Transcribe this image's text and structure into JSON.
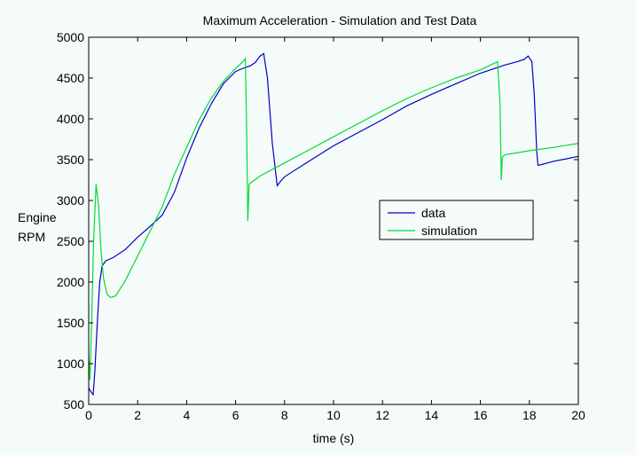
{
  "chart_data": {
    "type": "line",
    "title": "Maximum Acceleration - Simulation and Test Data",
    "xlabel": "time (s)",
    "ylabel": [
      "Engine",
      "RPM"
    ],
    "xlim": [
      0,
      20
    ],
    "ylim": [
      500,
      5000
    ],
    "x_ticks": [
      0,
      2,
      4,
      6,
      8,
      10,
      12,
      14,
      16,
      18,
      20
    ],
    "y_ticks": [
      500,
      1000,
      1500,
      2000,
      2500,
      3000,
      3500,
      4000,
      4500,
      5000
    ],
    "grid": false,
    "legend_position": "right",
    "series": [
      {
        "name": "data",
        "color": "#0000c8",
        "points": [
          [
            0,
            700
          ],
          [
            0.1,
            650
          ],
          [
            0.18,
            620
          ],
          [
            0.25,
            900
          ],
          [
            0.35,
            1500
          ],
          [
            0.45,
            2000
          ],
          [
            0.55,
            2200
          ],
          [
            0.7,
            2260
          ],
          [
            1.0,
            2300
          ],
          [
            1.5,
            2400
          ],
          [
            2.0,
            2550
          ],
          [
            2.5,
            2680
          ],
          [
            3.0,
            2820
          ],
          [
            3.5,
            3100
          ],
          [
            4.0,
            3520
          ],
          [
            4.5,
            3880
          ],
          [
            5.0,
            4180
          ],
          [
            5.5,
            4430
          ],
          [
            6.0,
            4580
          ],
          [
            6.3,
            4620
          ],
          [
            6.6,
            4650
          ],
          [
            6.8,
            4690
          ],
          [
            7.0,
            4770
          ],
          [
            7.15,
            4800
          ],
          [
            7.3,
            4500
          ],
          [
            7.5,
            3700
          ],
          [
            7.7,
            3180
          ],
          [
            7.85,
            3240
          ],
          [
            8.0,
            3290
          ],
          [
            9.0,
            3480
          ],
          [
            10.0,
            3670
          ],
          [
            11.0,
            3830
          ],
          [
            12.0,
            3990
          ],
          [
            13.0,
            4160
          ],
          [
            14.0,
            4300
          ],
          [
            15.0,
            4430
          ],
          [
            16.0,
            4560
          ],
          [
            17.0,
            4660
          ],
          [
            17.5,
            4700
          ],
          [
            17.8,
            4730
          ],
          [
            17.95,
            4770
          ],
          [
            18.1,
            4700
          ],
          [
            18.2,
            4300
          ],
          [
            18.3,
            3600
          ],
          [
            18.35,
            3430
          ],
          [
            18.5,
            3440
          ],
          [
            19.0,
            3480
          ],
          [
            19.5,
            3510
          ],
          [
            20.0,
            3540
          ]
        ]
      },
      {
        "name": "simulation",
        "color": "#00dc32",
        "points": [
          [
            0,
            1100
          ],
          [
            0.05,
            800
          ],
          [
            0.12,
            1500
          ],
          [
            0.2,
            2500
          ],
          [
            0.3,
            3200
          ],
          [
            0.4,
            2950
          ],
          [
            0.5,
            2400
          ],
          [
            0.6,
            2050
          ],
          [
            0.75,
            1850
          ],
          [
            0.9,
            1810
          ],
          [
            1.1,
            1830
          ],
          [
            1.5,
            2020
          ],
          [
            2.0,
            2320
          ],
          [
            2.5,
            2620
          ],
          [
            3.0,
            2920
          ],
          [
            3.5,
            3320
          ],
          [
            4.0,
            3650
          ],
          [
            4.5,
            3980
          ],
          [
            5.0,
            4250
          ],
          [
            5.5,
            4460
          ],
          [
            6.0,
            4620
          ],
          [
            6.3,
            4700
          ],
          [
            6.4,
            4740
          ],
          [
            6.45,
            3900
          ],
          [
            6.5,
            2750
          ],
          [
            6.55,
            3200
          ],
          [
            7.0,
            3300
          ],
          [
            8.0,
            3460
          ],
          [
            9.0,
            3620
          ],
          [
            10.0,
            3780
          ],
          [
            11.0,
            3940
          ],
          [
            12.0,
            4100
          ],
          [
            13.0,
            4250
          ],
          [
            14.0,
            4380
          ],
          [
            15.0,
            4500
          ],
          [
            16.0,
            4600
          ],
          [
            16.7,
            4700
          ],
          [
            16.8,
            4200
          ],
          [
            16.85,
            3250
          ],
          [
            16.9,
            3530
          ],
          [
            17.0,
            3560
          ],
          [
            18.0,
            3610
          ],
          [
            19.0,
            3650
          ],
          [
            20.0,
            3700
          ]
        ]
      }
    ]
  }
}
